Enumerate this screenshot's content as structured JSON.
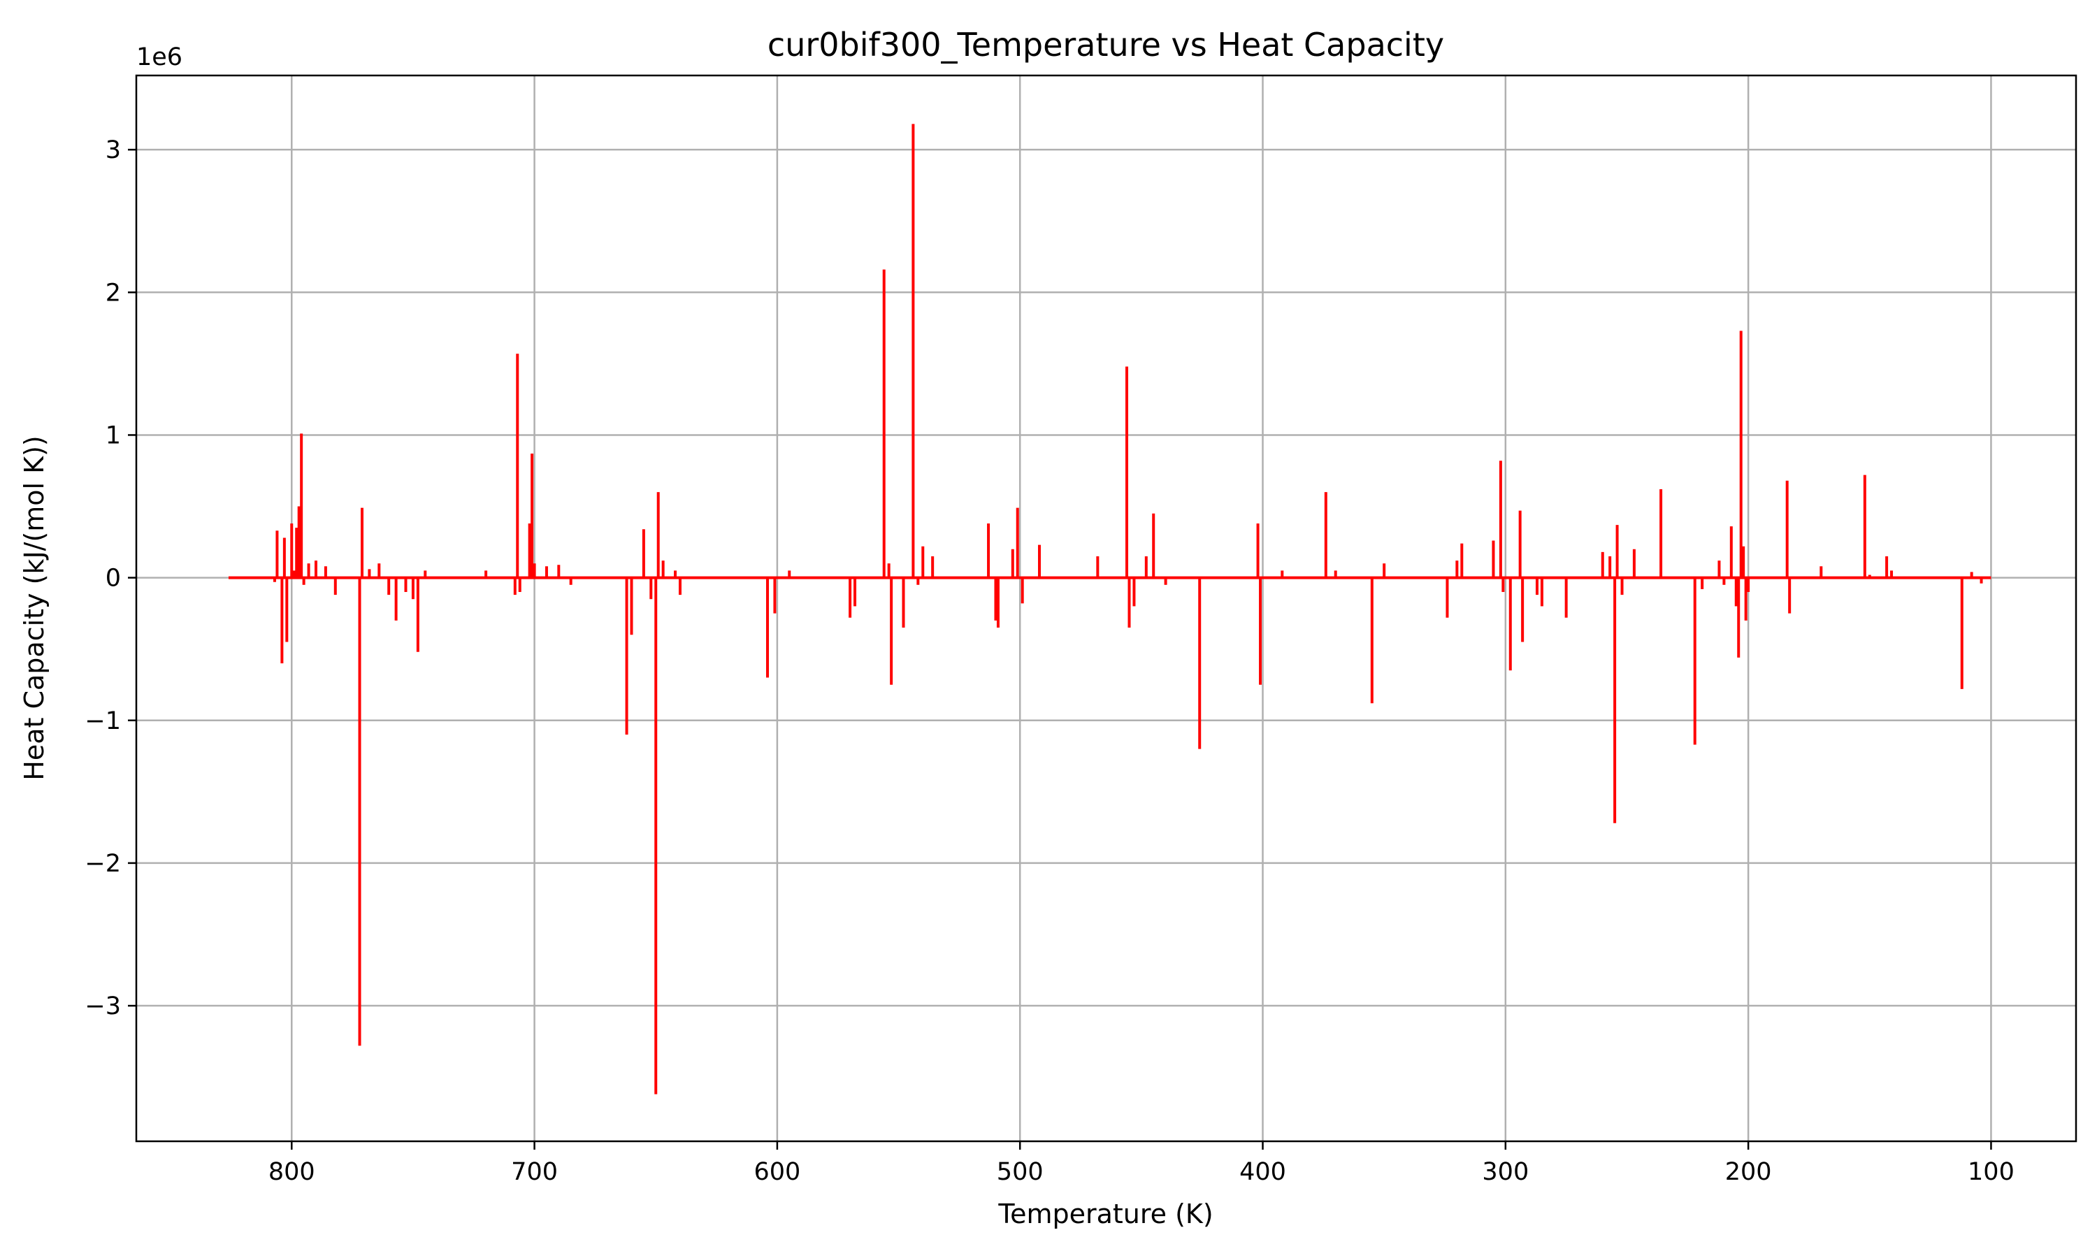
{
  "chart_data": {
    "type": "line",
    "title": "cur0bif300_Temperature vs Heat Capacity",
    "xlabel": "Temperature (K)",
    "ylabel": "Heat Capacity (kJ/(mol K))",
    "offset_label": "1e6",
    "x_inverted": true,
    "xlim": [
      864,
      65
    ],
    "ylim": [
      -3.95,
      3.52
    ],
    "grid": true,
    "x_ticks": [
      800,
      700,
      600,
      500,
      400,
      300,
      200,
      100
    ],
    "x_tick_labels": [
      "800",
      "700",
      "600",
      "500",
      "400",
      "300",
      "200",
      "100"
    ],
    "y_ticks": [
      -3,
      -2,
      -1,
      0,
      1,
      2,
      3
    ],
    "y_tick_labels": [
      "−3",
      "−2",
      "−1",
      "0",
      "1",
      "2",
      "3"
    ],
    "series": [
      {
        "color": "#ff0000",
        "baseline_range": [
          100,
          826
        ],
        "spikes": [
          [
            807,
            -0.03
          ],
          [
            806,
            0.33
          ],
          [
            804,
            -0.6
          ],
          [
            803,
            0.28
          ],
          [
            802,
            -0.45
          ],
          [
            800,
            0.38
          ],
          [
            799,
            0.05
          ],
          [
            798,
            0.35
          ],
          [
            797,
            0.5
          ],
          [
            796,
            1.01
          ],
          [
            795,
            -0.05
          ],
          [
            793,
            0.1
          ],
          [
            790,
            0.12
          ],
          [
            786,
            0.08
          ],
          [
            782,
            -0.12
          ],
          [
            772,
            -3.28
          ],
          [
            771,
            0.49
          ],
          [
            768,
            0.06
          ],
          [
            764,
            0.1
          ],
          [
            760,
            -0.12
          ],
          [
            757,
            -0.3
          ],
          [
            753,
            -0.1
          ],
          [
            750,
            -0.15
          ],
          [
            748,
            -0.52
          ],
          [
            745,
            0.05
          ],
          [
            720,
            0.05
          ],
          [
            708,
            -0.12
          ],
          [
            707,
            1.57
          ],
          [
            706,
            -0.1
          ],
          [
            702,
            0.38
          ],
          [
            701,
            0.87
          ],
          [
            700,
            0.1
          ],
          [
            695,
            0.08
          ],
          [
            690,
            0.09
          ],
          [
            685,
            -0.05
          ],
          [
            662,
            -1.1
          ],
          [
            660,
            -0.4
          ],
          [
            655,
            0.34
          ],
          [
            652,
            -0.15
          ],
          [
            650,
            -3.62
          ],
          [
            649,
            0.6
          ],
          [
            647,
            0.12
          ],
          [
            642,
            0.05
          ],
          [
            640,
            -0.12
          ],
          [
            604,
            -0.7
          ],
          [
            601,
            -0.25
          ],
          [
            595,
            0.05
          ],
          [
            570,
            -0.28
          ],
          [
            568,
            -0.2
          ],
          [
            556,
            2.16
          ],
          [
            554,
            0.1
          ],
          [
            553,
            -0.75
          ],
          [
            548,
            -0.35
          ],
          [
            544,
            3.18
          ],
          [
            542,
            -0.05
          ],
          [
            540,
            0.22
          ],
          [
            536,
            0.15
          ],
          [
            513,
            0.38
          ],
          [
            510,
            -0.3
          ],
          [
            509,
            -0.35
          ],
          [
            503,
            0.2
          ],
          [
            501,
            0.49
          ],
          [
            499,
            -0.18
          ],
          [
            492,
            0.23
          ],
          [
            468,
            0.15
          ],
          [
            456,
            1.48
          ],
          [
            455,
            -0.35
          ],
          [
            453,
            -0.2
          ],
          [
            448,
            0.15
          ],
          [
            445,
            0.45
          ],
          [
            440,
            -0.05
          ],
          [
            426,
            -1.2
          ],
          [
            402,
            0.38
          ],
          [
            401,
            -0.75
          ],
          [
            392,
            0.05
          ],
          [
            374,
            0.6
          ],
          [
            370,
            0.05
          ],
          [
            355,
            -0.88
          ],
          [
            350,
            0.1
          ],
          [
            324,
            -0.28
          ],
          [
            320,
            0.12
          ],
          [
            318,
            0.24
          ],
          [
            305,
            0.26
          ],
          [
            302,
            0.82
          ],
          [
            301,
            -0.1
          ],
          [
            298,
            -0.65
          ],
          [
            294,
            0.47
          ],
          [
            293,
            -0.45
          ],
          [
            287,
            -0.12
          ],
          [
            285,
            -0.2
          ],
          [
            275,
            -0.28
          ],
          [
            260,
            0.18
          ],
          [
            257,
            0.15
          ],
          [
            255,
            -1.72
          ],
          [
            254,
            0.37
          ],
          [
            252,
            -0.12
          ],
          [
            247,
            0.2
          ],
          [
            236,
            0.62
          ],
          [
            222,
            -1.17
          ],
          [
            219,
            -0.08
          ],
          [
            212,
            0.12
          ],
          [
            210,
            -0.05
          ],
          [
            207,
            0.36
          ],
          [
            205,
            -0.2
          ],
          [
            204,
            -0.56
          ],
          [
            203,
            1.73
          ],
          [
            202,
            0.22
          ],
          [
            201,
            -0.3
          ],
          [
            200,
            -0.1
          ],
          [
            184,
            0.68
          ],
          [
            183,
            -0.25
          ],
          [
            170,
            0.08
          ],
          [
            152,
            0.72
          ],
          [
            150,
            0.02
          ],
          [
            143,
            0.15
          ],
          [
            141,
            0.05
          ],
          [
            112,
            -0.78
          ],
          [
            108,
            0.04
          ],
          [
            104,
            -0.04
          ]
        ]
      }
    ]
  }
}
